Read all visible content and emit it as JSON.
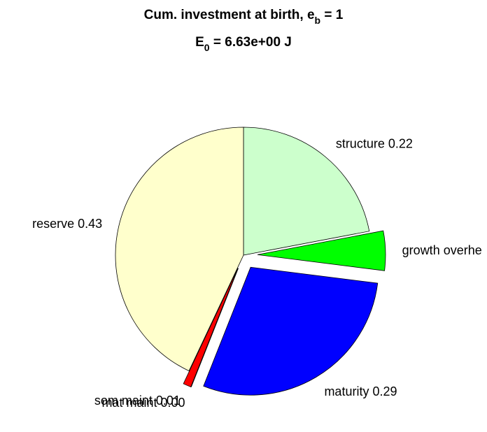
{
  "chart_data": {
    "type": "pie",
    "title": {
      "text": "Cum. investment at birth, e",
      "sub": "b",
      "after": " = 1"
    },
    "subtitle": {
      "text": "E",
      "sub": "0",
      "after": " = 6.63e+00 J"
    },
    "labels": [
      "structure 0.22",
      "growth overhe",
      "maturity 0.29",
      "mat maint 0.00",
      "som maint 0.01",
      "reserve 0.43"
    ],
    "values": [
      0.22,
      0.05,
      0.29,
      0.0,
      0.01,
      0.43
    ],
    "colors": [
      "#ccffcc",
      "#00ff00",
      "#0000ff",
      "#ff00ff",
      "#ff0000",
      "#ffffcc"
    ],
    "explode": [
      false,
      true,
      true,
      true,
      true,
      false
    ]
  }
}
